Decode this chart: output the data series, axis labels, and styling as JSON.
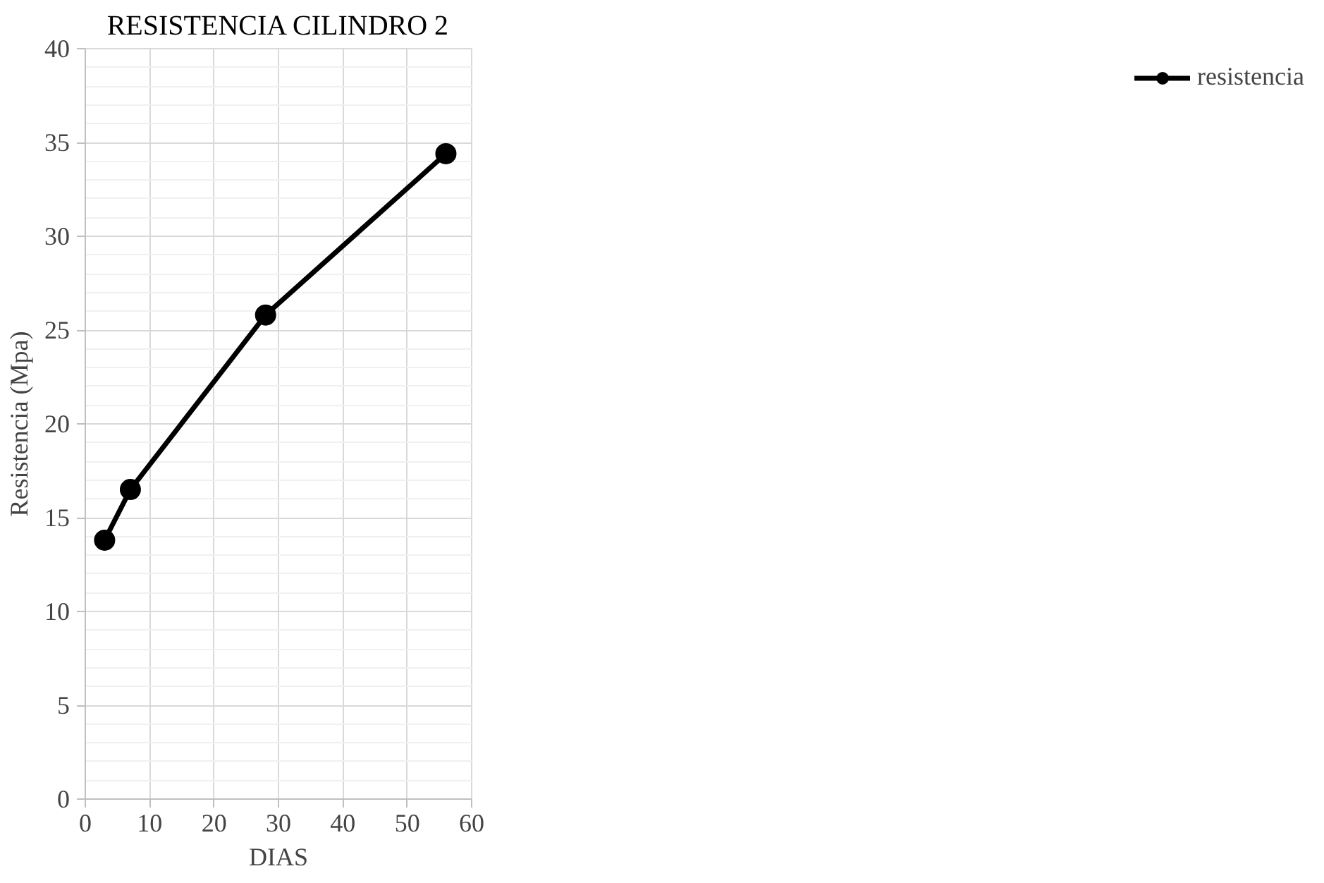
{
  "chart_data": {
    "type": "line",
    "title": "RESISTENCIA CILINDRO 2",
    "xlabel": "DIAS",
    "ylabel": "Resistencia (Mpa)",
    "x": [
      3,
      7,
      28,
      56
    ],
    "series": [
      {
        "name": "resistencia",
        "color": "#000000",
        "values": [
          13.8,
          16.5,
          25.8,
          34.4
        ]
      }
    ],
    "xlim": [
      0,
      60
    ],
    "xticks": [
      0,
      10,
      20,
      30,
      40,
      50,
      60
    ],
    "ylim": [
      0,
      40
    ],
    "yticks": [
      0,
      5,
      10,
      15,
      20,
      25,
      30,
      35,
      40
    ],
    "grid": true,
    "legend": "right",
    "marker": "circle",
    "line_style": "solid"
  }
}
